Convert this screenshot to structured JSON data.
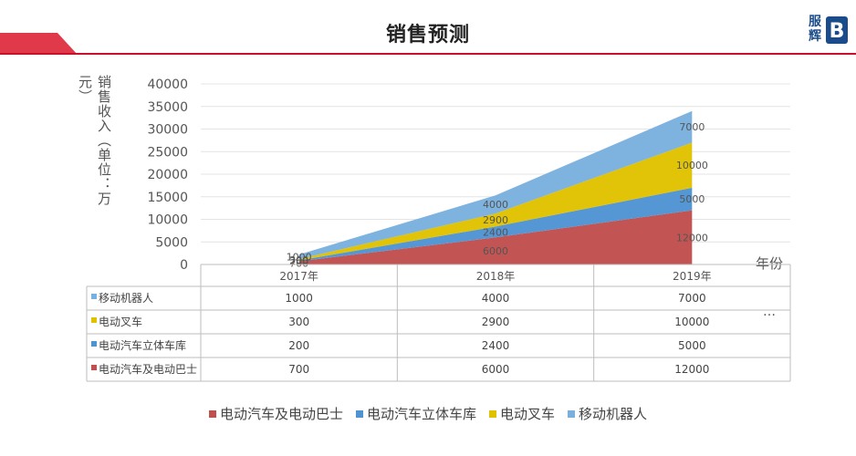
{
  "page": {
    "title": "销售预测"
  },
  "logo": {
    "text": "服辉",
    "mark": "B"
  },
  "chart_data": {
    "type": "area",
    "stacked": true,
    "categories": [
      "2017年",
      "2018年",
      "2019年"
    ],
    "ylabel": "销售收入（单位：万元）",
    "xlabel": "年份",
    "ylim": [
      0,
      40000
    ],
    "yticks": [
      "40000",
      "35000",
      "30000",
      "25000",
      "20000",
      "15000",
      "10000",
      "5000",
      "0"
    ],
    "grid": true,
    "legend_position": "bottom",
    "series": [
      {
        "name": "电动汽车及电动巴士",
        "values": [
          700,
          6000,
          12000
        ],
        "color": "#c0504d"
      },
      {
        "name": "电动汽车立体车库",
        "values": [
          200,
          2400,
          5000
        ],
        "color": "#4f93d3"
      },
      {
        "name": "电动叉车",
        "values": [
          300,
          2900,
          10000
        ],
        "color": "#e0c100"
      },
      {
        "name": "移动机器人",
        "values": [
          1000,
          4000,
          7000
        ],
        "color": "#7ab0de"
      }
    ],
    "table_rows": [
      {
        "name": "移动机器人",
        "values": [
          "1000",
          "4000",
          "7000"
        ],
        "color": "#7ab0de"
      },
      {
        "name": "电动叉车",
        "values": [
          "300",
          "2900",
          "10000"
        ],
        "color": "#e0c100"
      },
      {
        "name": "电动汽车立体车库",
        "values": [
          "200",
          "2400",
          "5000"
        ],
        "color": "#4f93d3"
      },
      {
        "name": "电动汽车及电动巴士",
        "values": [
          "700",
          "6000",
          "12000"
        ],
        "color": "#c0504d"
      }
    ],
    "ellipsis": "…"
  }
}
